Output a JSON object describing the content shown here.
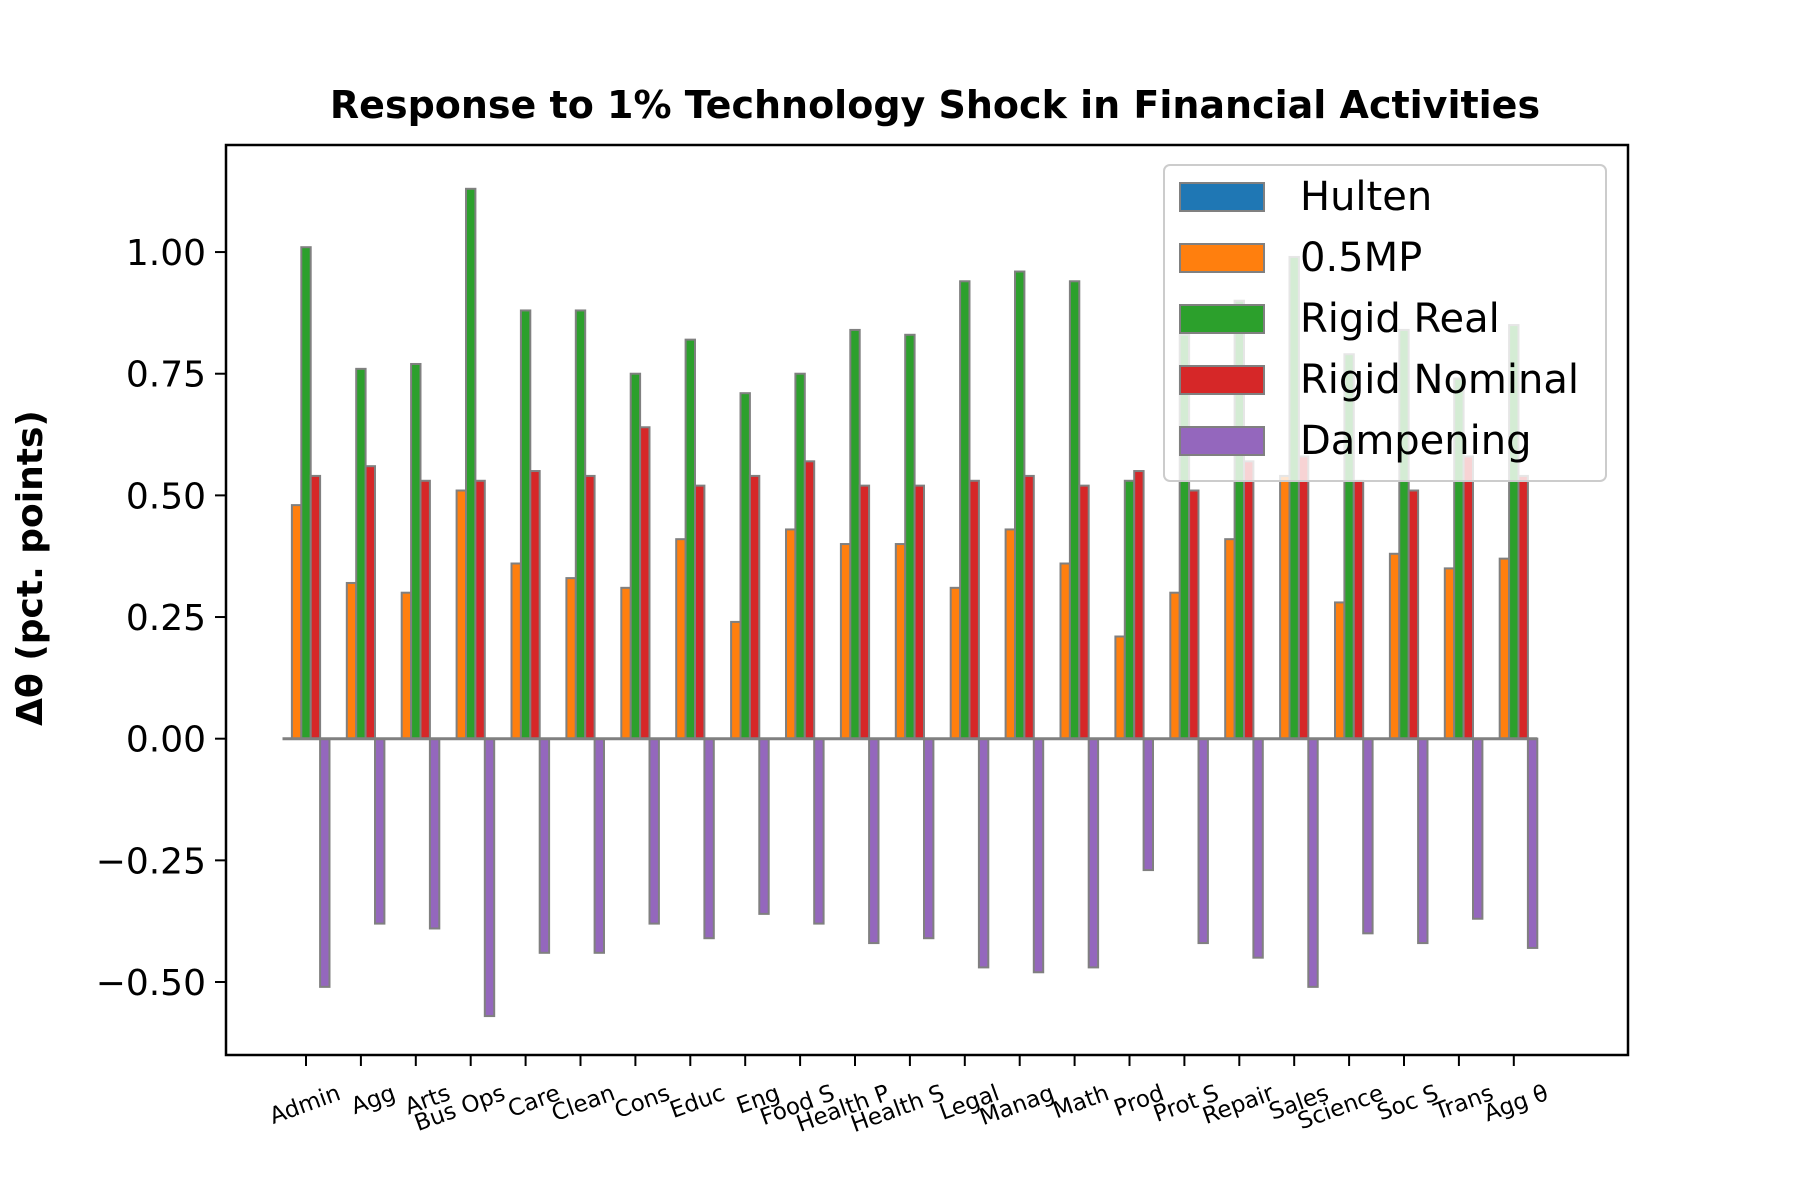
{
  "chart_data": {
    "type": "bar",
    "title": "Response to 1% Technology Shock in Financial Activities",
    "xlabel": "",
    "ylabel": "Δθ  (pct. points)",
    "ylim": [
      -0.65,
      1.22
    ],
    "yticks": [
      -0.5,
      -0.25,
      0.0,
      0.25,
      0.5,
      0.75,
      1.0
    ],
    "ytick_labels": [
      "−0.50",
      "−0.25",
      "0.00",
      "0.25",
      "0.50",
      "0.75",
      "1.00"
    ],
    "grid": false,
    "legend_position": "top-right",
    "categories": [
      "Admin",
      "Agg",
      "Arts",
      "Bus Ops",
      "Care",
      "Clean",
      "Cons",
      "Educ",
      "Eng",
      "Food S",
      "Health P",
      "Health S",
      "Legal",
      "Manag",
      "Math",
      "Prod",
      "Prot S",
      "Repair",
      "Sales",
      "Science",
      "Soc S",
      "Trans",
      "Agg θ"
    ],
    "series": [
      {
        "name": "Hulten",
        "color": "#1f77b4",
        "values": [
          0,
          0,
          0,
          0,
          0,
          0,
          0,
          0,
          0,
          0,
          0,
          0,
          0,
          0,
          0,
          0,
          0,
          0,
          0,
          0,
          0,
          0,
          0
        ]
      },
      {
        "name": "0.5MP",
        "color": "#ff7f0e",
        "values": [
          0.48,
          0.32,
          0.3,
          0.51,
          0.36,
          0.33,
          0.31,
          0.41,
          0.24,
          0.43,
          0.4,
          0.4,
          0.31,
          0.43,
          0.36,
          0.21,
          0.3,
          0.41,
          0.54,
          0.28,
          0.38,
          0.35,
          0.37
        ]
      },
      {
        "name": "Rigid Real",
        "color": "#2ca02c",
        "values": [
          1.01,
          0.76,
          0.77,
          1.13,
          0.88,
          0.88,
          0.75,
          0.82,
          0.71,
          0.75,
          0.84,
          0.83,
          0.94,
          0.96,
          0.94,
          0.53,
          0.83,
          0.9,
          0.99,
          0.79,
          0.84,
          0.74,
          0.85
        ]
      },
      {
        "name": "Rigid Nominal",
        "color": "#d62728",
        "values": [
          0.54,
          0.56,
          0.53,
          0.53,
          0.55,
          0.54,
          0.64,
          0.52,
          0.54,
          0.57,
          0.52,
          0.52,
          0.53,
          0.54,
          0.52,
          0.55,
          0.51,
          0.57,
          0.58,
          0.53,
          0.51,
          0.58,
          0.54
        ]
      },
      {
        "name": "Dampening",
        "color": "#9467bd",
        "values": [
          -0.51,
          -0.38,
          -0.39,
          -0.57,
          -0.44,
          -0.44,
          -0.38,
          -0.41,
          -0.36,
          -0.38,
          -0.42,
          -0.41,
          -0.47,
          -0.48,
          -0.47,
          -0.27,
          -0.42,
          -0.45,
          -0.51,
          -0.4,
          -0.42,
          -0.37,
          -0.43
        ]
      }
    ]
  }
}
